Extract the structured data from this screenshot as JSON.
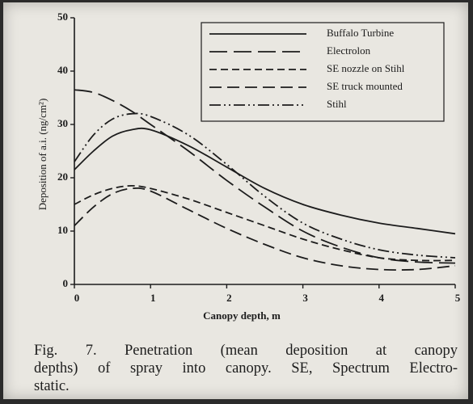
{
  "chart_data": {
    "type": "line",
    "xlabel": "Canopy depth, m",
    "ylabel": "Deposition of a.i. (ng/cm²)",
    "x": [
      0,
      0.25,
      0.5,
      0.75,
      1,
      1.5,
      2,
      2.5,
      3,
      3.5,
      4,
      4.5,
      5
    ],
    "series": [
      {
        "name": "Buffalo Turbine",
        "color": "#1c1c1c",
        "style": "solid",
        "values": [
          21.5,
          25,
          27.8,
          29,
          29,
          26,
          22,
          18,
          15,
          13,
          11.5,
          10.5,
          9.5
        ]
      },
      {
        "name": "Electrolon",
        "color": "#1c1c1c",
        "style": "long-dash",
        "values": [
          36.5,
          36,
          34.5,
          32.5,
          30,
          25,
          19.5,
          14.5,
          10,
          7,
          5,
          4.2,
          4
        ]
      },
      {
        "name": "SE nozzle on Stihl",
        "color": "#1c1c1c",
        "style": "dash",
        "values": [
          15,
          16.8,
          18,
          18.5,
          18,
          16,
          13.5,
          11,
          8.5,
          6.5,
          5,
          4.5,
          4.5
        ]
      },
      {
        "name": "SE truck mounted",
        "color": "#1c1c1c",
        "style": "medium-dash",
        "values": [
          11,
          14.5,
          17,
          18,
          17.5,
          14,
          10.5,
          7.5,
          5,
          3.5,
          2.8,
          2.8,
          3.5
        ]
      },
      {
        "name": "Stihl",
        "color": "#1c1c1c",
        "style": "dash-dot",
        "values": [
          23,
          28,
          31,
          32,
          31.5,
          28,
          22.5,
          16.5,
          11.5,
          8.5,
          6.5,
          5.5,
          5
        ]
      }
    ],
    "xlim": [
      0,
      5
    ],
    "xticks": [
      0,
      1,
      2,
      3,
      4,
      5
    ],
    "ylim": [
      0,
      50
    ],
    "yticks": [
      0,
      10,
      20,
      30,
      40,
      50
    ],
    "legend": "upper right",
    "caption": [
      "Fig. 7.  Penetration (mean deposition at canopy",
      "depths) of spray into canopy. SE, Spectrum Electro-",
      "static."
    ]
  }
}
